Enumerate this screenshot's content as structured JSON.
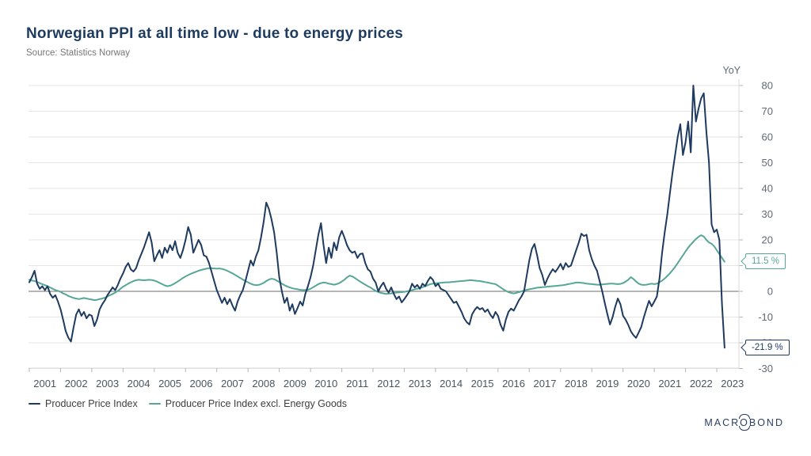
{
  "header": {
    "title": "Norwegian PPI at all time low - due to energy prices",
    "source": "Source: Statistics Norway"
  },
  "axis": {
    "unit_label": "YoY"
  },
  "legend": [
    {
      "label": "Producer Price Index",
      "color": "#1e3a5f"
    },
    {
      "label": "Producer Price Index excl. Energy Goods",
      "color": "#57a796"
    }
  ],
  "callouts": [
    {
      "text": "11.5 %",
      "value": 11.5,
      "color": "#57a796"
    },
    {
      "text": "-21.9 %",
      "value": -21.9,
      "color": "#1e3a5f"
    }
  ],
  "logo": {
    "pre": "MACR",
    "o": "O",
    "post": "BOND"
  },
  "colors": {
    "navy": "#1e3a5f",
    "teal": "#57a796",
    "grid": "#e6e6e6",
    "zero_line": "#6e6e6e",
    "axis_border": "#d9d9d9",
    "tick": "#b5b5b5",
    "tick_label": "#5e6974",
    "year_label": "#4a5560"
  },
  "chart_data": {
    "type": "line",
    "title": "Norwegian PPI at all time low - due to energy prices",
    "ylabel": "YoY",
    "unit": "percent, year-over-year",
    "frequency": "monthly",
    "x_start": "2001-01",
    "x_end": "2023-04",
    "ylim": [
      -30,
      80
    ],
    "grid": true,
    "legend_position": "bottom-left",
    "y_ticks": [
      80,
      70,
      60,
      50,
      40,
      30,
      20,
      10,
      0,
      -10,
      -20,
      -30
    ],
    "x_year_labels": [
      2001,
      2002,
      2003,
      2004,
      2005,
      2006,
      2007,
      2008,
      2009,
      2010,
      2011,
      2012,
      2013,
      2014,
      2015,
      2016,
      2017,
      2018,
      2019,
      2020,
      2021,
      2022,
      2023
    ],
    "series": [
      {
        "name": "Producer Price Index",
        "color": "#1e3a5f",
        "last_value_label": "-21.9 %",
        "values": [
          3.5,
          5.5,
          8,
          3,
          1,
          2,
          0.5,
          2,
          -1,
          -2.5,
          -1.5,
          -4,
          -7,
          -11,
          -15.5,
          -18,
          -19.5,
          -14,
          -9,
          -7,
          -9.5,
          -8,
          -10.5,
          -9,
          -9.5,
          -13.5,
          -11,
          -7,
          -5,
          -3.5,
          -1.5,
          0,
          1.5,
          0.5,
          2.5,
          5,
          7,
          9.5,
          11,
          8.5,
          7.7,
          9,
          12,
          14.5,
          17,
          20,
          23,
          19,
          11.7,
          14,
          16,
          13,
          17,
          15,
          18,
          16,
          19.5,
          15,
          13,
          16,
          20,
          25,
          22,
          15,
          17.5,
          20,
          18,
          14,
          13.5,
          11,
          7.5,
          4,
          0.5,
          -2,
          -4.5,
          -2.5,
          -5,
          -3,
          -5.5,
          -7.5,
          -4,
          -1.5,
          0.5,
          4,
          8,
          12,
          10,
          13.5,
          16,
          21,
          27,
          34.5,
          32,
          28,
          23,
          15,
          5.5,
          0,
          -4.5,
          -2.5,
          -7.5,
          -5,
          -8.8,
          -6.5,
          -4,
          -5.5,
          -1,
          2,
          5.5,
          10,
          16,
          22,
          26.5,
          18,
          11,
          17,
          13,
          19,
          16,
          21,
          23.5,
          21,
          18,
          16,
          15,
          15.5,
          13,
          14.5,
          14.7,
          11,
          8.6,
          7.7,
          5,
          3.4,
          0,
          2,
          3.4,
          1,
          -0.5,
          1.5,
          -1,
          -3,
          -2,
          -4.3,
          -3,
          -1.5,
          0,
          3,
          1.5,
          2.5,
          1,
          3,
          2,
          4,
          5.5,
          4.5,
          2,
          3,
          1,
          0.5,
          0,
          -1.5,
          -3,
          -4.5,
          -4,
          -6,
          -8,
          -10.5,
          -12,
          -12.9,
          -9,
          -7.3,
          -6.1,
          -7,
          -6.5,
          -8,
          -7,
          -9,
          -10.4,
          -8,
          -9.5,
          -13,
          -15.3,
          -11,
          -8,
          -6.7,
          -7.5,
          -5.5,
          -3.5,
          -2,
          0,
          6,
          12,
          16.5,
          18.4,
          14,
          9,
          6.4,
          2.5,
          5,
          7,
          8.6,
          7.5,
          9,
          10.7,
          8.5,
          11,
          9.5,
          10,
          13,
          16,
          19,
          22.4,
          21.5,
          22,
          16,
          12.6,
          10,
          8,
          4,
          0,
          -4.5,
          -8.9,
          -12.9,
          -10,
          -6,
          -2.8,
          -5,
          -9.5,
          -11,
          -13,
          -15.5,
          -17,
          -18.1,
          -16,
          -13.8,
          -10,
          -6.7,
          -3.7,
          -5.8,
          -4,
          -2,
          5,
          15,
          23,
          30,
          38,
          46,
          53,
          60,
          65,
          53,
          58,
          66,
          54,
          80,
          66,
          71,
          75,
          77,
          62,
          50,
          26,
          23,
          24,
          20,
          -5,
          -21.9
        ]
      },
      {
        "name": "Producer Price Index excl. Energy Goods",
        "color": "#57a796",
        "last_value_label": "11.5 %",
        "values": [
          4.5,
          4.2,
          4,
          3.6,
          3.2,
          2.8,
          2.4,
          2,
          1.5,
          1,
          0.5,
          0.2,
          -0.2,
          -0.8,
          -1.2,
          -1.8,
          -2.2,
          -2.6,
          -2.8,
          -3,
          -2.8,
          -2.6,
          -2.8,
          -3,
          -3.2,
          -3.4,
          -3.3,
          -3,
          -2.8,
          -2.5,
          -2,
          -1.5,
          -1,
          -0.5,
          0.2,
          1,
          1.8,
          2.4,
          3,
          3.5,
          4,
          4.3,
          4.5,
          4.4,
          4.3,
          4.4,
          4.5,
          4.4,
          4.2,
          3.8,
          3.3,
          2.8,
          2.3,
          2,
          2.2,
          2.6,
          3.2,
          3.8,
          4.5,
          5.2,
          5.8,
          6.3,
          6.8,
          7.2,
          7.6,
          8,
          8.3,
          8.6,
          8.8,
          9,
          9,
          8.9,
          8.8,
          8.9,
          8.7,
          8.4,
          8,
          7.5,
          7,
          6.4,
          5.8,
          5.2,
          4.6,
          4,
          3.5,
          3,
          2.6,
          2.4,
          2.5,
          2.8,
          3.3,
          4,
          4.6,
          4.9,
          4.7,
          4.2,
          3.6,
          3,
          2.4,
          1.9,
          1.5,
          1.2,
          1,
          0.8,
          0.6,
          0.5,
          0.5,
          0.6,
          1,
          1.6,
          2.2,
          2.8,
          3.2,
          3.4,
          3.3,
          3,
          2.8,
          2.6,
          2.8,
          3.2,
          3.8,
          4.5,
          5.4,
          6.1,
          5.8,
          5.2,
          4.5,
          3.8,
          3.2,
          2.6,
          2,
          1.5,
          0.8,
          0.2,
          -0.3,
          -0.6,
          -0.8,
          -1,
          -0.9,
          -0.8,
          -0.6,
          -0.5,
          -0.4,
          -0.3,
          -0.2,
          0,
          0.2,
          0.5,
          0.8,
          1,
          1.3,
          1.6,
          2,
          2.4,
          2.8,
          3,
          3.1,
          3.2,
          3.3,
          3.4,
          3.5,
          3.5,
          3.6,
          3.7,
          3.8,
          3.9,
          4,
          4.1,
          4.2,
          4.3,
          4.3,
          4.2,
          4.1,
          4,
          3.8,
          3.6,
          3.4,
          3.2,
          3,
          2.8,
          2.2,
          1.5,
          0.8,
          0.2,
          -0.3,
          -0.6,
          -0.8,
          -0.6,
          -0.3,
          0,
          0.3,
          0.6,
          0.8,
          1,
          1.2,
          1.4,
          1.5,
          1.6,
          1.7,
          1.8,
          1.9,
          2,
          2.1,
          2.2,
          2.3,
          2.4,
          2.6,
          2.8,
          3,
          3.2,
          3.4,
          3.4,
          3.3,
          3.2,
          3,
          2.9,
          2.8,
          2.7,
          2.6,
          2.6,
          2.7,
          2.8,
          2.9,
          3,
          3,
          2.9,
          2.8,
          2.9,
          3.2,
          3.8,
          4.5,
          5.5,
          4.8,
          3.8,
          3,
          2.6,
          2.5,
          2.6,
          2.8,
          3,
          2.8,
          3,
          3.5,
          4.2,
          5,
          6,
          7,
          8.2,
          9.5,
          11,
          12.5,
          14,
          15.5,
          17,
          18.2,
          19.3,
          20.3,
          21.2,
          21.8,
          21.3,
          20,
          19,
          18.5,
          17.5,
          16,
          14.5,
          13,
          11.5
        ]
      }
    ]
  }
}
